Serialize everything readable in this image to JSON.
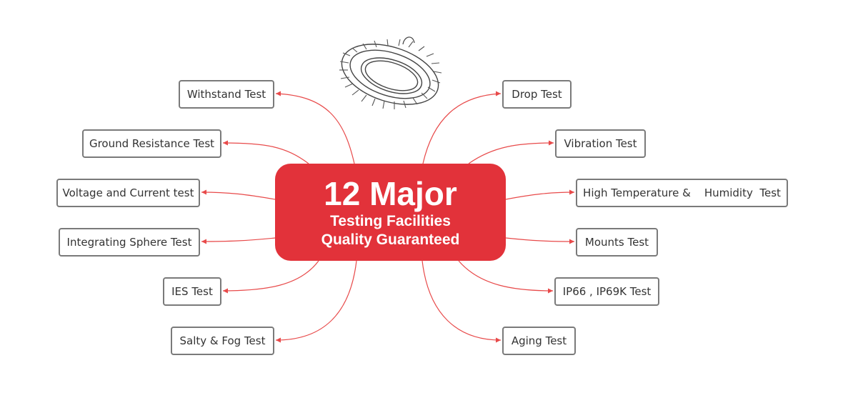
{
  "hub": {
    "title": "12 Major",
    "line1": "Testing Facilities",
    "line2": "Quality Guaranteed"
  },
  "tests_left": [
    "Withstand Test",
    "Ground Resistance Test",
    "Voltage and Current test",
    "Integrating Sphere Test",
    "IES Test",
    "Salty & Fog Test"
  ],
  "tests_right": [
    "Drop Test",
    "Vibration Test",
    "High Temperature &    Humidity  Test",
    "Mounts Test",
    "IP66 , IP69K Test",
    "Aging Test"
  ],
  "product_icon": "ufo-high-bay-light-icon",
  "colors": {
    "hub": "#e2323a",
    "connector": "#e84a4a",
    "node_border": "#7a7a7a"
  }
}
